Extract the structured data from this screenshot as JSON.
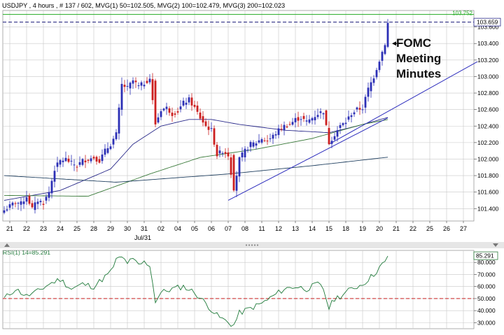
{
  "header": {
    "main_title": "USDJPY , 4 hours , # 137 / 602, MVG(1) 50=102.505, MVG(2) 100=102.479, MVG(3) 200=102.023",
    "x_sublabel": "Jul/31",
    "rsi_title": "RSI(1) 14=85.291"
  },
  "colors": {
    "background": "#ffffff",
    "grid": "#c8c8c8",
    "bull_candle": "#2b2fb5",
    "bear_candle": "#cc1f1f",
    "mvg_50": "#2a2a8a",
    "mvg_100": "#3a7a3a",
    "mvg_200": "#1f3f5f",
    "trendline": "#2d2dbd",
    "level_line": "#1a1a7a",
    "top_line": "#22aa22",
    "rsi_line": "#1f7a3a",
    "rsi_level": "#cc2222"
  },
  "chart_data": [
    {
      "type": "candlestick",
      "title": "USDJPY , 4 hours , # 137 / 602, MVG(1) 50=102.505, MVG(2) 100=102.479, MVG(3) 200=102.023",
      "ylim": [
        101.25,
        103.8
      ],
      "y_ticks": [
        "101.400",
        "101.600",
        "101.800",
        "102.000",
        "102.200",
        "102.400",
        "102.600",
        "102.800",
        "103.000",
        "103.200",
        "103.400",
        "103.600"
      ],
      "x_ticks": [
        {
          "label": "21",
          "slot": 2
        },
        {
          "label": "22",
          "slot": 8
        },
        {
          "label": "23",
          "slot": 14
        },
        {
          "label": "24",
          "slot": 20
        },
        {
          "label": "25",
          "slot": 26
        },
        {
          "label": "28",
          "slot": 32
        },
        {
          "label": "29",
          "slot": 38
        },
        {
          "label": "30",
          "slot": 44
        },
        {
          "label": "31",
          "slot": 50
        },
        {
          "label": "02",
          "slot": 56
        },
        {
          "label": "04",
          "slot": 62
        },
        {
          "label": "05",
          "slot": 68
        },
        {
          "label": "06",
          "slot": 74
        },
        {
          "label": "07",
          "slot": 80
        },
        {
          "label": "08",
          "slot": 86
        },
        {
          "label": "11",
          "slot": 92
        },
        {
          "label": "12",
          "slot": 98
        },
        {
          "label": "13",
          "slot": 104
        },
        {
          "label": "14",
          "slot": 110
        },
        {
          "label": "15",
          "slot": 116
        },
        {
          "label": "18",
          "slot": 122
        },
        {
          "label": "19",
          "slot": 128
        },
        {
          "label": "20",
          "slot": 134
        },
        {
          "label": "21",
          "slot": 140
        },
        {
          "label": "22",
          "slot": 146
        },
        {
          "label": "25",
          "slot": 152
        },
        {
          "label": "26",
          "slot": 158
        },
        {
          "label": "27",
          "slot": 164
        }
      ],
      "close_anchors": [
        [
          0,
          101.38
        ],
        [
          4,
          101.48
        ],
        [
          6,
          101.46
        ],
        [
          8,
          101.55
        ],
        [
          10,
          101.4
        ],
        [
          12,
          101.5
        ],
        [
          14,
          101.47
        ],
        [
          16,
          101.6
        ],
        [
          18,
          101.88
        ],
        [
          20,
          101.98
        ],
        [
          22,
          102.0
        ],
        [
          24,
          101.95
        ],
        [
          26,
          101.92
        ],
        [
          28,
          101.98
        ],
        [
          30,
          102.0
        ],
        [
          32,
          102.02
        ],
        [
          34,
          101.98
        ],
        [
          36,
          102.1
        ],
        [
          38,
          102.18
        ],
        [
          40,
          102.3
        ],
        [
          42,
          102.9
        ],
        [
          44,
          102.86
        ],
        [
          46,
          102.95
        ],
        [
          48,
          102.88
        ],
        [
          50,
          102.92
        ],
        [
          52,
          102.98
        ],
        [
          54,
          102.42
        ],
        [
          56,
          102.6
        ],
        [
          58,
          102.62
        ],
        [
          60,
          102.55
        ],
        [
          62,
          102.58
        ],
        [
          64,
          102.68
        ],
        [
          66,
          102.72
        ],
        [
          68,
          102.62
        ],
        [
          70,
          102.5
        ],
        [
          72,
          102.4
        ],
        [
          74,
          102.35
        ],
        [
          76,
          102.05
        ],
        [
          78,
          102.1
        ],
        [
          80,
          102.05
        ],
        [
          82,
          101.62
        ],
        [
          84,
          102.0
        ],
        [
          86,
          102.1
        ],
        [
          88,
          102.18
        ],
        [
          90,
          102.2
        ],
        [
          92,
          102.25
        ],
        [
          94,
          102.22
        ],
        [
          96,
          102.28
        ],
        [
          98,
          102.35
        ],
        [
          100,
          102.4
        ],
        [
          102,
          102.42
        ],
        [
          104,
          102.48
        ],
        [
          106,
          102.5
        ],
        [
          108,
          102.45
        ],
        [
          110,
          102.5
        ],
        [
          112,
          102.55
        ],
        [
          114,
          102.58
        ],
        [
          116,
          102.2
        ],
        [
          118,
          102.3
        ],
        [
          120,
          102.4
        ],
        [
          122,
          102.45
        ],
        [
          124,
          102.55
        ],
        [
          126,
          102.6
        ],
        [
          128,
          102.62
        ],
        [
          130,
          102.85
        ],
        [
          132,
          103.0
        ],
        [
          134,
          103.2
        ],
        [
          136,
          103.4
        ],
        [
          137,
          103.65
        ]
      ],
      "series": [
        {
          "name": "MVG(1) 50",
          "label": "MVG(1) 50=102.505",
          "anchors": [
            [
              0,
              101.5
            ],
            [
              20,
              101.62
            ],
            [
              38,
              101.88
            ],
            [
              46,
              102.18
            ],
            [
              56,
              102.4
            ],
            [
              66,
              102.48
            ],
            [
              74,
              102.48
            ],
            [
              84,
              102.42
            ],
            [
              100,
              102.35
            ],
            [
              116,
              102.32
            ],
            [
              126,
              102.4
            ],
            [
              137,
              102.505
            ]
          ]
        },
        {
          "name": "MVG(2) 100",
          "label": "MVG(2) 100=102.479",
          "anchors": [
            [
              0,
              101.56
            ],
            [
              30,
              101.55
            ],
            [
              52,
              101.82
            ],
            [
              70,
              102.02
            ],
            [
              90,
              102.12
            ],
            [
              110,
              102.25
            ],
            [
              128,
              102.42
            ],
            [
              137,
              102.479
            ]
          ]
        },
        {
          "name": "MVG(3) 200",
          "label": "MVG(3) 200=102.023",
          "anchors": [
            [
              0,
              101.8
            ],
            [
              40,
              101.72
            ],
            [
              80,
              101.82
            ],
            [
              110,
              101.92
            ],
            [
              137,
              102.023
            ]
          ]
        }
      ],
      "trendlines": [
        {
          "name": "support-trendline-1",
          "from": [
            80,
            101.5
          ],
          "to": [
            137,
            102.5
          ]
        },
        {
          "name": "support-trendline-2",
          "from": [
            116,
            102.18
          ],
          "to": [
            169,
            103.18
          ]
        }
      ],
      "levels": [
        {
          "name": "top-green-line",
          "value": 103.752,
          "label": "103.752"
        },
        {
          "name": "current-price-line",
          "value": 103.659,
          "label": "103.659"
        }
      ],
      "annotation": {
        "lines": [
          "FOMC",
          "Meeting",
          "Minutes"
        ],
        "target_slot": 137,
        "target_value": 103.4
      }
    },
    {
      "type": "line",
      "title": "RSI(1) 14=85.291",
      "ylim": [
        25,
        90
      ],
      "y_ticks": [
        "30.000",
        "40.000",
        "50.000",
        "60.000",
        "70.000",
        "80.000"
      ],
      "level": 50,
      "last_label": "85.291",
      "anchors": [
        [
          0,
          50
        ],
        [
          4,
          58
        ],
        [
          8,
          52
        ],
        [
          12,
          56
        ],
        [
          16,
          62
        ],
        [
          20,
          66
        ],
        [
          24,
          58
        ],
        [
          28,
          62
        ],
        [
          32,
          60
        ],
        [
          36,
          68
        ],
        [
          38,
          72
        ],
        [
          40,
          82
        ],
        [
          42,
          84
        ],
        [
          44,
          80
        ],
        [
          46,
          82
        ],
        [
          48,
          78
        ],
        [
          50,
          80
        ],
        [
          52,
          78
        ],
        [
          54,
          48
        ],
        [
          56,
          55
        ],
        [
          60,
          58
        ],
        [
          64,
          60
        ],
        [
          68,
          55
        ],
        [
          72,
          46
        ],
        [
          76,
          36
        ],
        [
          80,
          30
        ],
        [
          82,
          28
        ],
        [
          84,
          38
        ],
        [
          88,
          42
        ],
        [
          92,
          46
        ],
        [
          96,
          52
        ],
        [
          100,
          58
        ],
        [
          104,
          60
        ],
        [
          108,
          58
        ],
        [
          112,
          62
        ],
        [
          114,
          58
        ],
        [
          116,
          42
        ],
        [
          118,
          50
        ],
        [
          120,
          52
        ],
        [
          124,
          58
        ],
        [
          128,
          62
        ],
        [
          132,
          70
        ],
        [
          134,
          76
        ],
        [
          136,
          80
        ],
        [
          137,
          85.291
        ]
      ]
    }
  ]
}
